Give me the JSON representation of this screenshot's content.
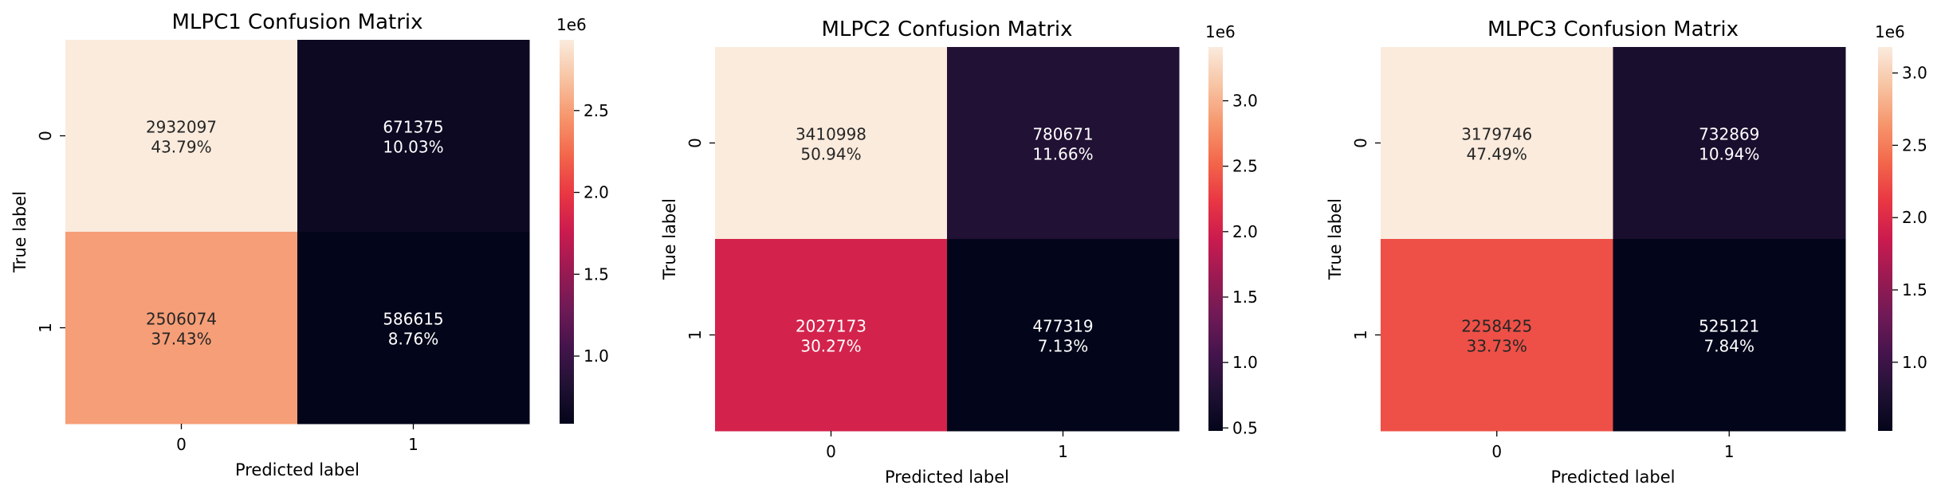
{
  "chart_data": [
    {
      "type": "heatmap",
      "title": "MLPC1 Confusion Matrix",
      "xlabel": "Predicted label",
      "ylabel": "True label",
      "x_categories": [
        "0",
        "1"
      ],
      "y_categories": [
        "0",
        "1"
      ],
      "values": [
        [
          2932097,
          671375
        ],
        [
          2506074,
          586615
        ]
      ],
      "percent_labels": [
        [
          "43.79%",
          "10.03%"
        ],
        [
          "37.43%",
          "8.76%"
        ]
      ],
      "value_labels": [
        [
          "2932097",
          "671375"
        ],
        [
          "2506074",
          "586615"
        ]
      ],
      "colorbar": {
        "multiplier_label": "1e6",
        "vmin": 586615,
        "vmax": 2932097,
        "ticks": [
          1.0,
          1.5,
          2.0,
          2.5
        ],
        "tick_labels": [
          "1.0",
          "1.5",
          "2.0",
          "2.5"
        ]
      },
      "colormap": "rocket"
    },
    {
      "type": "heatmap",
      "title": "MLPC2 Confusion Matrix",
      "xlabel": "Predicted label",
      "ylabel": "True label",
      "x_categories": [
        "0",
        "1"
      ],
      "y_categories": [
        "0",
        "1"
      ],
      "values": [
        [
          3410998,
          780671
        ],
        [
          2027173,
          477319
        ]
      ],
      "percent_labels": [
        [
          "50.94%",
          "11.66%"
        ],
        [
          "30.27%",
          "7.13%"
        ]
      ],
      "value_labels": [
        [
          "3410998",
          "780671"
        ],
        [
          "2027173",
          "477319"
        ]
      ],
      "colorbar": {
        "multiplier_label": "1e6",
        "vmin": 477319,
        "vmax": 3410998,
        "ticks": [
          0.5,
          1.0,
          1.5,
          2.0,
          2.5,
          3.0
        ],
        "tick_labels": [
          "0.5",
          "1.0",
          "1.5",
          "2.0",
          "2.5",
          "3.0"
        ]
      },
      "colormap": "rocket"
    },
    {
      "type": "heatmap",
      "title": "MLPC3 Confusion Matrix",
      "xlabel": "Predicted label",
      "ylabel": "True label",
      "x_categories": [
        "0",
        "1"
      ],
      "y_categories": [
        "0",
        "1"
      ],
      "values": [
        [
          3179746,
          732869
        ],
        [
          2258425,
          525121
        ]
      ],
      "percent_labels": [
        [
          "47.49%",
          "10.94%"
        ],
        [
          "33.73%",
          "7.84%"
        ]
      ],
      "value_labels": [
        [
          "3179746",
          "732869"
        ],
        [
          "2258425",
          "525121"
        ]
      ],
      "colorbar": {
        "multiplier_label": "1e6",
        "vmin": 525121,
        "vmax": 3179746,
        "ticks": [
          1.0,
          1.5,
          2.0,
          2.5,
          3.0
        ],
        "tick_labels": [
          "1.0",
          "1.5",
          "2.0",
          "2.5",
          "3.0"
        ]
      },
      "colormap": "rocket"
    }
  ]
}
